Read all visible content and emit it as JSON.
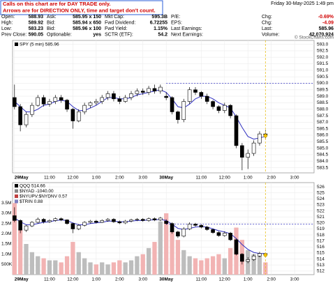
{
  "note": [
    "Calls on this chart are for DAY TRADE only.",
    "Arrows are for DIRECTION ONLY, time and target don't count."
  ],
  "date": "Friday 30-May-2025 1:49 pm",
  "credit": "© StockCharts.com",
  "quote": {
    "rows": [
      [
        "Open:",
        "588.93",
        "Ask:",
        "585.95 x 150",
        "Mkt Cap:",
        "595.3B",
        "P/E:",
        "Chg:",
        "-0.69%"
      ],
      [
        "High:",
        "589.92",
        "Bid:",
        "585.94 x 650",
        "Fwd Dividend:",
        "6.72255",
        "EPS:",
        "Chg:",
        "-4.09"
      ],
      [
        "Low:",
        "583.23",
        "Bid:",
        "585.96 x 100",
        "Fwd Yield:",
        "1.15%",
        "Last Earnings:",
        "Last:",
        "585.96"
      ],
      [
        "Prev Close:",
        "590.05",
        "Optionable:",
        "yes",
        "SCTR (ETF):",
        "54.2",
        "Next Earnings:",
        "Volume:",
        "42,070,924"
      ]
    ]
  },
  "chart_data": [
    {
      "type": "candlestick",
      "title": "SPY (5 min) 585.96",
      "x": [
        0,
        3,
        6,
        9,
        12,
        15,
        18,
        21,
        24,
        27,
        30,
        33,
        36,
        39,
        42,
        45,
        48,
        51,
        54,
        57,
        60,
        63,
        66,
        69,
        72,
        75,
        78,
        81,
        84,
        87,
        90,
        93,
        96,
        99,
        102,
        105,
        108,
        111,
        114,
        117,
        120,
        123,
        126,
        129
      ],
      "open": [
        588.9,
        588.2,
        586.8,
        587.6,
        588.3,
        588.9,
        588.4,
        588.6,
        588.9,
        588.7,
        588.0,
        587.1,
        587.8,
        588.3,
        588.5,
        588.6,
        588.9,
        589.2,
        588.8,
        588.6,
        588.9,
        589.2,
        589.4,
        589.3,
        589.6,
        589.4,
        589.0,
        588.9,
        587.8,
        587.2,
        588.6,
        589.5,
        589.3,
        589.0,
        588.6,
        588.2,
        587.9,
        588.3,
        587.5,
        585.2,
        584.3,
        584.6,
        585.4,
        586.1
      ],
      "high": [
        589.9,
        588.4,
        587.8,
        588.5,
        589.1,
        589.1,
        588.8,
        589.1,
        589.1,
        588.8,
        588.1,
        588.0,
        588.5,
        588.6,
        588.8,
        589.1,
        589.4,
        589.4,
        589.0,
        589.1,
        589.4,
        589.6,
        589.6,
        589.8,
        589.9,
        589.9,
        589.3,
        589.0,
        587.9,
        588.8,
        589.7,
        589.7,
        589.4,
        589.2,
        588.7,
        588.3,
        588.5,
        588.4,
        587.6,
        585.4,
        584.9,
        585.6,
        586.3,
        586.4
      ],
      "low": [
        588.0,
        586.3,
        586.6,
        587.4,
        588.2,
        588.2,
        588.2,
        588.4,
        588.5,
        587.8,
        586.5,
        587.0,
        587.6,
        588.1,
        588.3,
        588.4,
        588.7,
        588.6,
        588.4,
        588.5,
        588.7,
        589.0,
        589.1,
        589.1,
        589.2,
        589.2,
        588.7,
        587.6,
        586.9,
        587.0,
        588.4,
        589.1,
        588.8,
        588.4,
        588.0,
        587.7,
        587.7,
        587.3,
        585.0,
        583.3,
        583.4,
        584.4,
        585.2,
        585.7
      ],
      "close": [
        588.2,
        586.8,
        587.6,
        588.3,
        588.9,
        588.4,
        588.6,
        588.9,
        588.7,
        588.0,
        587.1,
        587.8,
        588.3,
        588.5,
        588.6,
        588.9,
        589.2,
        588.8,
        588.6,
        588.9,
        589.2,
        589.4,
        589.3,
        589.6,
        589.4,
        589.7,
        588.9,
        587.8,
        587.2,
        588.6,
        589.5,
        589.3,
        589.0,
        588.6,
        588.2,
        587.9,
        588.3,
        587.5,
        585.2,
        584.3,
        584.6,
        585.4,
        586.1,
        585.96
      ],
      "ma": [
        588.6,
        588.2,
        587.8,
        587.8,
        588.0,
        588.3,
        588.4,
        588.6,
        588.7,
        588.6,
        588.2,
        587.9,
        587.9,
        588.1,
        588.3,
        588.6,
        588.9,
        588.9,
        588.8,
        588.8,
        588.9,
        589.1,
        589.2,
        589.3,
        589.4,
        589.5,
        589.3,
        588.8,
        588.2,
        588.1,
        588.4,
        588.8,
        589.0,
        589.0,
        588.8,
        588.5,
        588.3,
        588.1,
        587.4,
        586.6,
        585.9,
        585.7,
        585.8,
        585.9
      ],
      "ma_color": "#3030c0",
      "level": 590.0,
      "level_color": "#3030c0",
      "xlim": [
        -1,
        154
      ],
      "ylim": [
        583.1,
        593.3
      ],
      "yticks": [
        583.5,
        {
          "value": 584,
          "label": "584.0"
        },
        584.5,
        {
          "value": 585,
          "label": "585.0"
        },
        585.5,
        {
          "value": 586,
          "label": "586.0"
        },
        586.5,
        {
          "value": 587,
          "label": "587.0"
        },
        587.5,
        {
          "value": 588,
          "label": "588.0"
        },
        588.5,
        {
          "value": 589,
          "label": "589.0"
        },
        589.5,
        {
          "value": 590,
          "label": "590.0"
        },
        590.5,
        {
          "value": 591,
          "label": "591.0"
        },
        591.5,
        {
          "value": 592,
          "label": "592.0"
        },
        592.5,
        {
          "value": 593,
          "label": "593.0"
        }
      ],
      "xticks": [
        {
          "value": 0,
          "label": "29May"
        },
        {
          "value": 18,
          "label": "11:00"
        },
        {
          "value": 30,
          "label": "12:00"
        },
        {
          "value": 42,
          "label": "1:00"
        },
        {
          "value": 54,
          "label": "2:00"
        },
        {
          "value": 66,
          "label": "3:00"
        },
        {
          "value": 78,
          "label": "30May"
        },
        {
          "value": 96,
          "label": "11:00"
        },
        {
          "value": 108,
          "label": "12:00"
        },
        {
          "value": 120,
          "label": "1:00"
        },
        {
          "value": 132,
          "label": "2:00"
        },
        {
          "value": 144,
          "label": "3:00"
        }
      ],
      "grid": true
    },
    {
      "type": "candlestick",
      "legend": [
        "QQQ 514.66",
        "$NYAD -1040.00",
        "$NYUPV:$NYDNV 0.57",
        "$TRIN 0.88"
      ],
      "legend_colors": [
        "#000000",
        "#888888",
        "#c04040",
        "#8080c0"
      ],
      "x": [
        0,
        3,
        6,
        9,
        12,
        15,
        18,
        21,
        24,
        27,
        30,
        33,
        36,
        39,
        42,
        45,
        48,
        51,
        54,
        57,
        60,
        63,
        66,
        69,
        72,
        75,
        78,
        81,
        84,
        87,
        90,
        93,
        96,
        99,
        102,
        105,
        108,
        111,
        114,
        117,
        120,
        123,
        126,
        129
      ],
      "open": [
        521.2,
        520.4,
        518.8,
        519.5,
        520.1,
        520.6,
        520.2,
        520.4,
        520.7,
        520.5,
        519.9,
        519.0,
        519.6,
        520.1,
        520.3,
        520.1,
        520.4,
        520.6,
        520.2,
        520.0,
        520.3,
        520.5,
        520.6,
        520.4,
        520.7,
        520.5,
        520.3,
        519.9,
        518.5,
        517.8,
        519.0,
        519.8,
        519.6,
        519.3,
        518.9,
        518.4,
        517.9,
        518.3,
        517.2,
        514.8,
        513.6,
        513.9,
        514.5,
        514.9
      ],
      "high": [
        522.6,
        520.6,
        519.7,
        520.3,
        520.9,
        520.8,
        520.6,
        520.9,
        520.9,
        520.6,
        520.0,
        519.8,
        520.3,
        520.5,
        520.5,
        520.6,
        520.8,
        520.8,
        520.4,
        520.5,
        520.7,
        520.8,
        520.8,
        520.9,
        520.9,
        521.0,
        520.6,
        520.1,
        518.7,
        519.3,
        520.1,
        520.0,
        519.8,
        519.5,
        519.1,
        518.6,
        518.6,
        518.5,
        517.4,
        515.0,
        514.3,
        514.8,
        515.2,
        515.1
      ],
      "low": [
        520.1,
        518.3,
        518.5,
        519.3,
        519.9,
        519.9,
        520.0,
        520.2,
        520.3,
        519.7,
        518.3,
        518.8,
        519.4,
        519.9,
        519.9,
        520.0,
        520.2,
        520.0,
        519.8,
        519.8,
        520.1,
        520.3,
        520.2,
        520.2,
        520.3,
        520.3,
        519.7,
        518.2,
        517.5,
        517.6,
        518.8,
        519.4,
        519.1,
        518.7,
        518.2,
        517.7,
        517.7,
        517.0,
        514.6,
        513.1,
        513.3,
        513.7,
        514.3,
        514.5
      ],
      "close": [
        520.4,
        518.8,
        519.5,
        520.1,
        520.6,
        520.2,
        520.4,
        520.7,
        520.5,
        519.9,
        519.0,
        519.6,
        520.1,
        520.3,
        520.1,
        520.4,
        520.6,
        520.2,
        520.0,
        520.3,
        520.5,
        520.6,
        520.4,
        520.7,
        520.5,
        520.8,
        519.9,
        518.5,
        517.8,
        519.0,
        519.8,
        519.6,
        519.3,
        518.9,
        518.4,
        517.9,
        518.3,
        517.2,
        514.8,
        513.6,
        513.9,
        514.5,
        514.9,
        514.66
      ],
      "ma": [
        520.8,
        520.2,
        519.7,
        519.7,
        519.9,
        520.1,
        520.2,
        520.4,
        520.5,
        520.4,
        520.0,
        519.7,
        519.7,
        519.9,
        520.0,
        520.1,
        520.3,
        520.3,
        520.2,
        520.2,
        520.3,
        520.4,
        520.4,
        520.5,
        520.5,
        520.6,
        520.4,
        519.8,
        519.1,
        518.9,
        519.1,
        519.3,
        519.4,
        519.3,
        519.0,
        518.7,
        518.5,
        518.2,
        517.4,
        516.4,
        515.6,
        515.1,
        514.9,
        514.9
      ],
      "ma_color": "#3030c0",
      "level": 519.8,
      "level_color": "#3030c0",
      "volume": [
        3500000,
        2200000,
        1500000,
        1100000,
        900000,
        800000,
        700000,
        700000,
        600000,
        900000,
        1600000,
        1100000,
        800000,
        600000,
        500000,
        600000,
        500000,
        600000,
        700000,
        600000,
        700000,
        900000,
        1000000,
        1300000,
        1600000,
        2600000,
        3000000,
        2100000,
        1700000,
        1200000,
        900000,
        800000,
        700000,
        800000,
        900000,
        1000000,
        800000,
        1300000,
        2300000,
        1700000,
        1200000,
        1000000,
        900000,
        600000
      ],
      "volume_up_color": "#bdbdbd",
      "volume_down_color": "#f2b3b3",
      "vol_ylim": [
        0,
        4500000
      ],
      "vol_ticks": [
        {
          "value": 500000,
          "label": "500K"
        },
        {
          "value": 1000000,
          "label": "1.0M"
        },
        {
          "value": 1500000,
          "label": "1.5M"
        },
        {
          "value": 2000000,
          "label": "2.0M"
        },
        {
          "value": 2500000,
          "label": "2.5M"
        },
        {
          "value": 3000000,
          "label": "3.0M"
        },
        {
          "value": 3500000,
          "label": "3.5M"
        }
      ],
      "xlim": [
        -1,
        154
      ],
      "ylim": [
        511.4,
        526.7
      ],
      "yticks": [
        512,
        513,
        514,
        515,
        516,
        517,
        518,
        519,
        520,
        521,
        522,
        523,
        524,
        525,
        526
      ],
      "xticks": [
        {
          "value": 0,
          "label": "29May"
        },
        {
          "value": 18,
          "label": "11:00"
        },
        {
          "value": 30,
          "label": "12:00"
        },
        {
          "value": 42,
          "label": "1:00"
        },
        {
          "value": 54,
          "label": "2:00"
        },
        {
          "value": 66,
          "label": "3:00"
        },
        {
          "value": 78,
          "label": "30May"
        },
        {
          "value": 96,
          "label": "11:00"
        },
        {
          "value": 108,
          "label": "12:00"
        },
        {
          "value": 120,
          "label": "1:00"
        },
        {
          "value": 132,
          "label": "2:00"
        },
        {
          "value": 144,
          "label": "3:00"
        }
      ],
      "grid": true
    }
  ]
}
